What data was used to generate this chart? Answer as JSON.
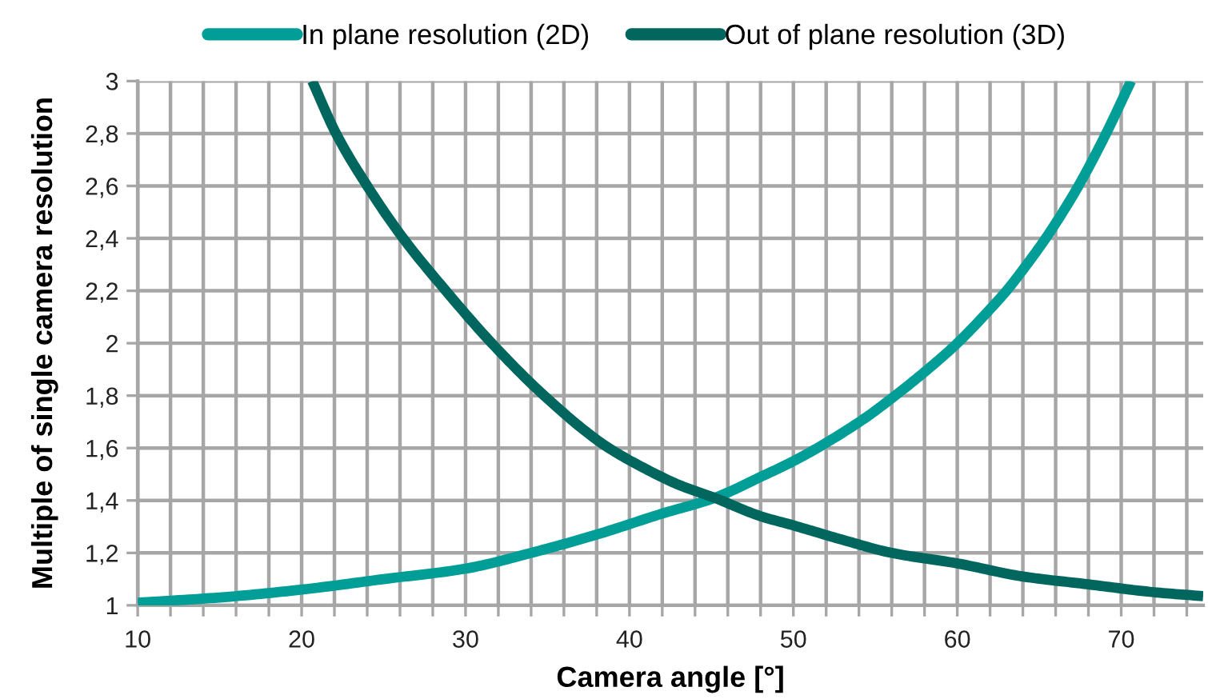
{
  "chart_data": {
    "type": "line",
    "xlabel": "Camera angle [°]",
    "ylabel": "Multiple of single camera resolution",
    "series": [
      {
        "name": "In plane resolution (2D)",
        "color": "#009e96",
        "x": [
          10,
          15,
          20,
          25,
          30,
          34,
          38,
          42,
          45.2,
          48,
          50,
          52,
          54.5,
          56,
          58,
          60,
          62,
          63,
          64,
          65.5,
          67.3,
          69,
          70.6
        ],
        "values": [
          1.01,
          1.03,
          1.06,
          1.1,
          1.14,
          1.2,
          1.27,
          1.35,
          1.41,
          1.49,
          1.55,
          1.62,
          1.72,
          1.79,
          1.89,
          2.0,
          2.13,
          2.2,
          2.28,
          2.41,
          2.59,
          2.79,
          3.0
        ]
      },
      {
        "name": "Out of plane resolution (3D)",
        "color": "#00665e",
        "x": [
          20.65,
          22.1,
          24.0,
          26.2,
          28.8,
          31.6,
          34.8,
          38.5,
          41,
          43,
          45.2,
          48,
          50,
          53,
          56,
          60,
          64,
          68,
          72,
          75
        ],
        "values": [
          3.0,
          2.8,
          2.6,
          2.4,
          2.2,
          2.0,
          1.8,
          1.61,
          1.52,
          1.46,
          1.41,
          1.34,
          1.305,
          1.25,
          1.2,
          1.16,
          1.11,
          1.08,
          1.05,
          1.035
        ]
      }
    ],
    "xlim": [
      10,
      75
    ],
    "xticks": [
      10,
      {
        "value": 12,
        "label": null
      },
      {
        "value": 14,
        "label": null
      },
      {
        "value": 16,
        "label": null
      },
      {
        "value": 18,
        "label": null
      },
      20,
      {
        "value": 22,
        "label": null
      },
      {
        "value": 24,
        "label": null
      },
      {
        "value": 26,
        "label": null
      },
      {
        "value": 28,
        "label": null
      },
      30,
      {
        "value": 32,
        "label": null
      },
      {
        "value": 34,
        "label": null
      },
      {
        "value": 36,
        "label": null
      },
      {
        "value": 38,
        "label": null
      },
      40,
      {
        "value": 42,
        "label": null
      },
      {
        "value": 44,
        "label": null
      },
      {
        "value": 46,
        "label": null
      },
      {
        "value": 48,
        "label": null
      },
      50,
      {
        "value": 52,
        "label": null
      },
      {
        "value": 54,
        "label": null
      },
      {
        "value": 56,
        "label": null
      },
      {
        "value": 58,
        "label": null
      },
      60,
      {
        "value": 62,
        "label": null
      },
      {
        "value": 64,
        "label": null
      },
      {
        "value": 66,
        "label": null
      },
      {
        "value": 68,
        "label": null
      },
      70,
      {
        "value": 72,
        "label": null
      },
      {
        "value": 74,
        "label": null
      }
    ],
    "ylim": [
      1,
      3
    ],
    "yticks": [
      {
        "value": 1,
        "label": "1"
      },
      {
        "value": 1.2,
        "label": "1,2"
      },
      {
        "value": 1.4,
        "label": "1,4"
      },
      {
        "value": 1.6,
        "label": "1,6"
      },
      {
        "value": 1.8,
        "label": "1,8"
      },
      {
        "value": 2,
        "label": "2"
      },
      {
        "value": 2.2,
        "label": "2,2"
      },
      {
        "value": 2.4,
        "label": "2,4"
      },
      {
        "value": 2.6,
        "label": "2,6"
      },
      {
        "value": 2.8,
        "label": "2,8"
      },
      {
        "value": 3,
        "label": "3"
      }
    ],
    "grid": true,
    "legend": "top",
    "line_style": "solid",
    "marker": "none"
  }
}
